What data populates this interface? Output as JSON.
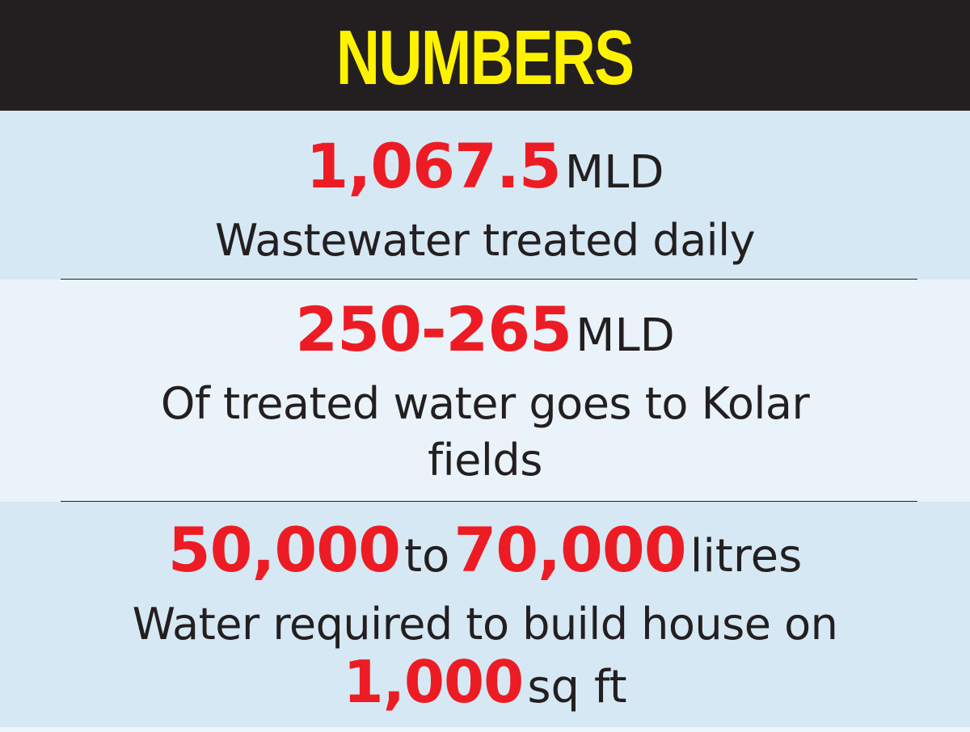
{
  "header": {
    "title": "NUMBERS"
  },
  "stat1": {
    "figure": "1,067.5",
    "unit": "MLD",
    "description": "Wastewater treated daily"
  },
  "stat2": {
    "figure": "250-265",
    "unit": "MLD",
    "description_line1": "Of treated water goes to Kolar",
    "description_line2": "fields"
  },
  "stat3": {
    "figure_from": "50,000",
    "connector": "to",
    "figure_to": "70,000",
    "unit": "litres",
    "description_line1": "Water required to build house on",
    "area_figure": "1,000",
    "area_unit": "sq ft"
  },
  "colors": {
    "header_bg": "#231f20",
    "header_text": "#fff200",
    "figure_red": "#ed1c24",
    "band_light": "#d6e8f4",
    "band_lighter": "#eaf3fa",
    "text_dark": "#231f20"
  }
}
